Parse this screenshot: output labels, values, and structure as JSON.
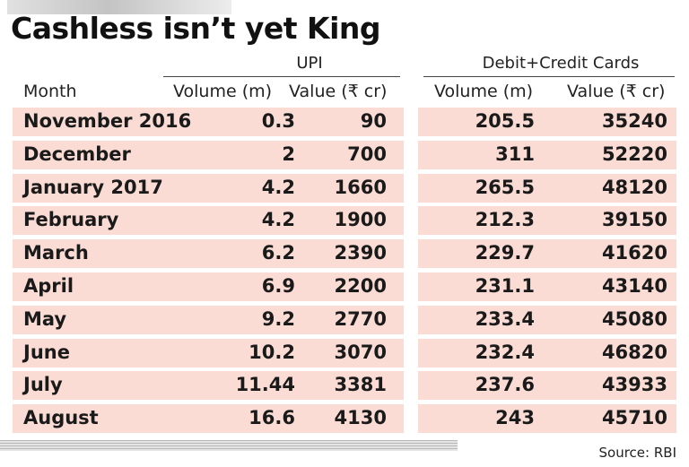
{
  "title": "Cashless isn’t yet King",
  "source": "Source: RBI",
  "groups": {
    "upi": "UPI",
    "cards": "Debit+Credit Cards"
  },
  "columns": [
    "Month",
    "Volume (m)",
    "Value (₹ cr)",
    "Volume (m)",
    "Value (₹ cr)"
  ],
  "chart_data": {
    "type": "table",
    "title": "Cashless isn’t yet King",
    "column_groups": [
      {
        "name": "UPI",
        "columns": [
          "Volume (m)",
          "Value (₹ cr)"
        ]
      },
      {
        "name": "Debit+Credit Cards",
        "columns": [
          "Volume (m)",
          "Value (₹ cr)"
        ]
      }
    ],
    "rows": [
      [
        "November 2016",
        "0.3",
        "90",
        "205.5",
        "35240"
      ],
      [
        "December",
        "2",
        "700",
        "311",
        "52220"
      ],
      [
        "January 2017",
        "4.2",
        "1660",
        "265.5",
        "48120"
      ],
      [
        "February",
        "4.2",
        "1900",
        "212.3",
        "39150"
      ],
      [
        "March",
        "6.2",
        "2390",
        "229.7",
        "41620"
      ],
      [
        "April",
        "6.9",
        "2200",
        "231.1",
        "43140"
      ],
      [
        "May",
        "9.2",
        "2770",
        "233.4",
        "45080"
      ],
      [
        "June",
        "10.2",
        "3070",
        "232.4",
        "46820"
      ],
      [
        "July",
        "11.44",
        "3381",
        "237.6",
        "43933"
      ],
      [
        "August",
        "16.6",
        "4130",
        "243",
        "45710"
      ]
    ]
  }
}
